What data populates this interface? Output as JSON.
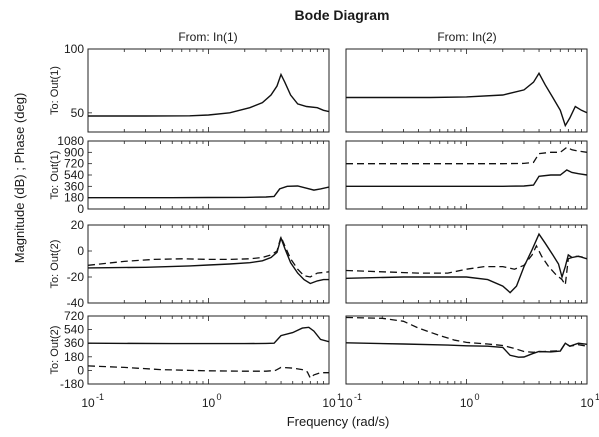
{
  "chart_data": {
    "type": "line",
    "title": "Bode Diagram",
    "xlabel": "Frequency  (rad/s)",
    "ylabel": "Magnitude (dB) ; Phase (deg)",
    "x_scale": "log",
    "xlim": [
      0.1,
      10
    ],
    "x_tick_labels": [
      "10",
      "10",
      "10"
    ],
    "x_tick_exponents": [
      "-1",
      "0",
      "1"
    ],
    "columns": [
      "From: In(1)",
      "From: In(2)"
    ],
    "panels": [
      {
        "row": 0,
        "col": 0,
        "row_label": "To: Out(1)",
        "kind": "magnitude",
        "ylim": [
          35,
          100
        ],
        "y_ticks": [
          50,
          100
        ],
        "series": [
          {
            "style": "solid",
            "x": [
              0.1,
              0.3,
              0.7,
              1.0,
              1.5,
              2.2,
              2.8,
              3.3,
              3.7,
              4.0,
              4.3,
              4.8,
              5.5,
              6.5,
              8,
              9,
              10
            ],
            "y": [
              47.5,
              47.5,
              47.7,
              48.3,
              50,
              54,
              58,
              64,
              71,
              80,
              74,
              64,
              57,
              55,
              54,
              52,
              51
            ]
          }
        ]
      },
      {
        "row": 0,
        "col": 1,
        "row_label": "",
        "kind": "magnitude",
        "ylim": [
          35,
          100
        ],
        "y_ticks": [],
        "series": [
          {
            "style": "solid",
            "x": [
              0.1,
              0.5,
              1.0,
              2.0,
              3.0,
              3.6,
              4.0,
              4.5,
              5.2,
              6.0,
              6.6,
              7.2,
              8,
              9,
              10
            ],
            "y": [
              62,
              62,
              62.5,
              64,
              68,
              74,
              81,
              72,
              62,
              52,
              40,
              46,
              55,
              52,
              50
            ]
          }
        ]
      },
      {
        "row": 1,
        "col": 0,
        "row_label": "To: Out(1)",
        "kind": "phase",
        "ylim": [
          0,
          1080
        ],
        "y_ticks": [
          0,
          180,
          360,
          540,
          720,
          900,
          1080
        ],
        "series": [
          {
            "style": "solid",
            "x": [
              0.1,
              0.5,
              1.0,
              2.0,
              3.0,
              3.5,
              3.9,
              4.5,
              5.5,
              6.5,
              7.5,
              8.5,
              10
            ],
            "y": [
              180,
              180,
              182,
              185,
              190,
              200,
              320,
              360,
              365,
              330,
              300,
              320,
              350
            ]
          }
        ]
      },
      {
        "row": 1,
        "col": 1,
        "row_label": "",
        "kind": "phase",
        "ylim": [
          0,
          1080
        ],
        "y_ticks": [],
        "series": [
          {
            "style": "solid",
            "x": [
              0.1,
              1.0,
              2.0,
              3.0,
              3.6,
              4.0,
              5.0,
              6.0,
              6.8,
              7.5,
              8.5,
              10
            ],
            "y": [
              360,
              360,
              360,
              365,
              380,
              520,
              540,
              540,
              620,
              580,
              560,
              540
            ]
          },
          {
            "style": "dashed",
            "x": [
              0.1,
              1.0,
              2.0,
              3.0,
              3.6,
              4.0,
              5.0,
              6.0,
              6.8,
              7.5,
              8.5,
              10
            ],
            "y": [
              720,
              720,
              720,
              725,
              740,
              880,
              900,
              900,
              980,
              940,
              920,
              900
            ]
          }
        ]
      },
      {
        "row": 2,
        "col": 0,
        "row_label": "To: Out(2)",
        "kind": "magnitude",
        "ylim": [
          -40,
          20
        ],
        "y_ticks": [
          -40,
          -20,
          0,
          20
        ],
        "series": [
          {
            "style": "solid",
            "x": [
              0.1,
              0.3,
              0.7,
              1.0,
              1.5,
              2.2,
              2.8,
              3.3,
              3.7,
              4.0,
              4.3,
              4.8,
              5.5,
              6.2,
              7.0,
              8.0,
              9.0,
              10
            ],
            "y": [
              -13,
              -12.5,
              -11.5,
              -10.8,
              -10,
              -9,
              -7.5,
              -5,
              -1,
              10,
              2,
              -9,
              -17,
              -22,
              -25,
              -23,
              -22,
              -22
            ]
          },
          {
            "style": "dashed",
            "x": [
              0.1,
              0.2,
              0.35,
              0.6,
              1.0,
              1.5,
              2.2,
              2.8,
              3.3,
              3.7,
              4.0,
              4.3,
              4.8,
              5.5,
              6.2,
              7.0,
              8.0,
              10
            ],
            "y": [
              -11,
              -8,
              -6.5,
              -6,
              -6.5,
              -6.5,
              -6,
              -5,
              -3,
              0,
              11,
              4,
              -6,
              -14,
              -19,
              -20,
              -17,
              -16
            ]
          }
        ]
      },
      {
        "row": 2,
        "col": 1,
        "row_label": "",
        "kind": "magnitude",
        "ylim": [
          -40,
          20
        ],
        "y_ticks": [],
        "series": [
          {
            "style": "solid",
            "x": [
              0.1,
              0.3,
              0.7,
              1.0,
              1.5,
              2.0,
              2.3,
              2.6,
              3.0,
              3.5,
              4.0,
              4.5,
              5.2,
              5.8,
              6.2,
              6.6,
              7.0,
              7.5,
              8.5,
              10
            ],
            "y": [
              -21,
              -20,
              -20,
              -20,
              -22,
              -27,
              -32,
              -27,
              -12,
              1,
              13,
              6,
              -3,
              -10,
              -20,
              -12,
              -3,
              -5,
              -4,
              -6
            ]
          },
          {
            "style": "dashed",
            "x": [
              0.1,
              0.2,
              0.4,
              0.7,
              1.0,
              1.4,
              2.0,
              2.5,
              3.0,
              3.5,
              3.8,
              4.2,
              4.8,
              5.5,
              6.2,
              6.6,
              7.0,
              8.0,
              10
            ],
            "y": [
              -15,
              -16,
              -17,
              -17,
              -14,
              -12,
              -12,
              -14,
              -11,
              -3,
              4,
              -4,
              -12,
              -18,
              -22,
              -26,
              -6,
              -4,
              -5
            ]
          }
        ]
      },
      {
        "row": 3,
        "col": 0,
        "row_label": "To: Out(2)",
        "kind": "phase",
        "ylim": [
          -180,
          720
        ],
        "y_ticks": [
          -180,
          0,
          180,
          360,
          540,
          720
        ],
        "series": [
          {
            "style": "solid",
            "x": [
              0.1,
              0.5,
              1.0,
              2.0,
              3.0,
              3.5,
              4.0,
              5.0,
              6.0,
              6.8,
              7.5,
              8.5,
              10
            ],
            "y": [
              360,
              355,
              355,
              355,
              358,
              360,
              460,
              500,
              560,
              570,
              520,
              410,
              380
            ]
          },
          {
            "style": "dashed",
            "x": [
              0.1,
              0.2,
              0.4,
              0.7,
              1.0,
              2.0,
              3.0,
              3.6,
              4.0,
              5.0,
              6.0,
              6.6,
              7.0,
              7.5,
              8.5,
              10
            ],
            "y": [
              60,
              40,
              10,
              0,
              -5,
              -10,
              -10,
              0,
              40,
              30,
              10,
              -20,
              -100,
              -60,
              -30,
              -30
            ]
          }
        ]
      },
      {
        "row": 3,
        "col": 1,
        "row_label": "",
        "kind": "phase",
        "ylim": [
          -180,
          720
        ],
        "y_ticks": [],
        "series": [
          {
            "style": "solid",
            "x": [
              0.1,
              0.3,
              0.7,
              1.0,
              1.5,
              2.0,
              2.3,
              2.7,
              3.0,
              3.5,
              4.0,
              5.0,
              6.0,
              6.6,
              7.2,
              8.5,
              10
            ],
            "y": [
              365,
              350,
              335,
              325,
              320,
              305,
              200,
              175,
              178,
              220,
              250,
              245,
              255,
              360,
              320,
              360,
              345
            ]
          },
          {
            "style": "dashed",
            "x": [
              0.1,
              0.2,
              0.3,
              0.4,
              0.6,
              0.8,
              1.0,
              1.5,
              2.0,
              2.5,
              3.0,
              3.6,
              4.0,
              5.0,
              6.0,
              6.6,
              7.2,
              8.5,
              10
            ],
            "y": [
              700,
              690,
              650,
              560,
              460,
              400,
              370,
              350,
              330,
              290,
              250,
              240,
              245,
              255,
              260,
              360,
              320,
              340,
              320
            ]
          }
        ]
      }
    ]
  }
}
